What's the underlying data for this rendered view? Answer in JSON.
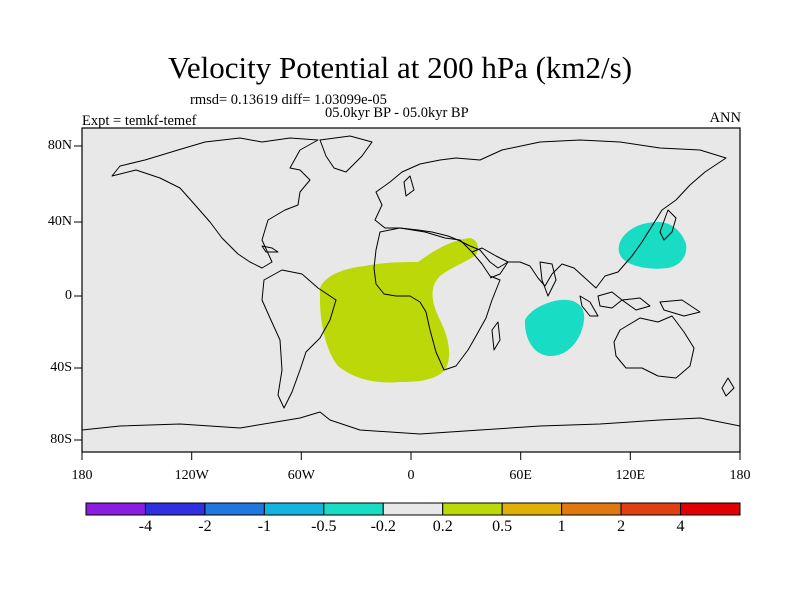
{
  "title": "Velocity Potential at 200 hPa (km2/s)",
  "stats": "rmsd= 0.13619 diff= 1.03099e-05",
  "period": "05.0kyr BP - 05.0kyr BP",
  "experiment": "Expt = temkf-temef",
  "season": "ANN",
  "x_ticks": [
    "180",
    "120W",
    "60W",
    "0",
    "60E",
    "120E",
    "180"
  ],
  "y_ticks": [
    "80N",
    "40N",
    "0",
    "40S",
    "80S"
  ],
  "colorbar": {
    "labels": [
      "-4",
      "-2",
      "-1",
      "-0.5",
      "-0.2",
      "0.2",
      "0.5",
      "1",
      "2",
      "4"
    ],
    "colors": [
      "#8a1ee0",
      "#3030e0",
      "#1e78e0",
      "#14b4e0",
      "#18dcc4",
      "#e8e8e8",
      "#bcd808",
      "#e0b008",
      "#e07810",
      "#e04010",
      "#e00000"
    ]
  },
  "colors": {
    "background": "#e8e8e8",
    "positive_region": "#bcd808",
    "negative_region": "#18dcc4"
  }
}
